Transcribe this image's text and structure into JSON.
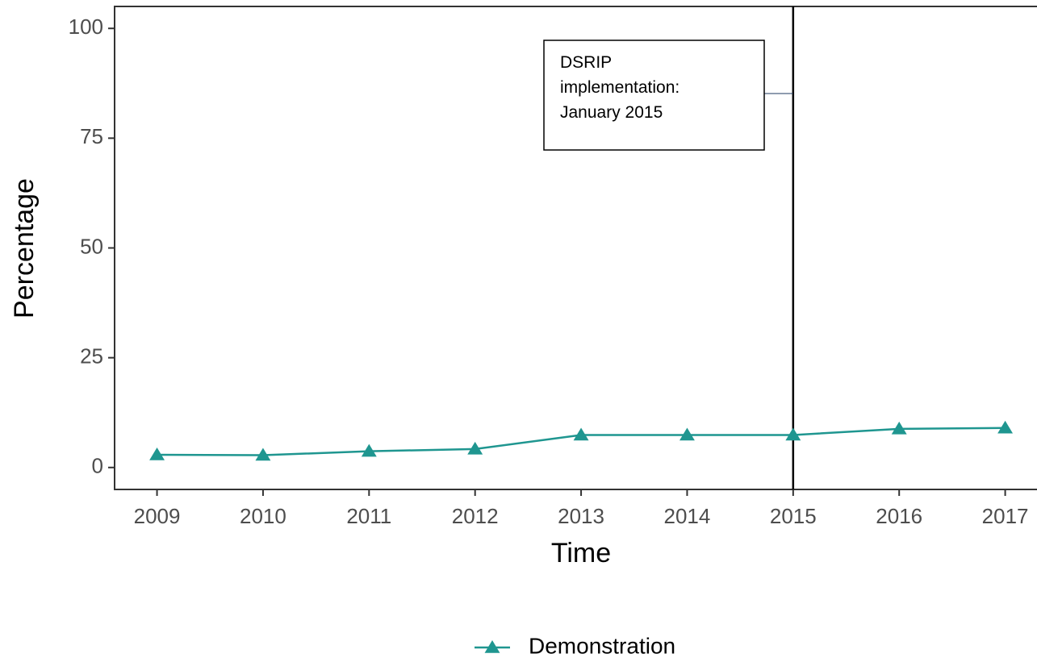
{
  "chart_data": {
    "type": "line",
    "x_label": "Time",
    "y_label": "Percentage",
    "x": [
      2009,
      2010,
      2011,
      2012,
      2013,
      2014,
      2015,
      2016,
      2017
    ],
    "series": [
      {
        "name": "Demonstration",
        "color": "#1f9690",
        "marker": "triangle",
        "values": [
          2.9,
          2.8,
          3.7,
          4.2,
          7.4,
          7.4,
          7.4,
          8.8,
          9.0
        ]
      }
    ],
    "xlim": [
      2008.6,
      2017.3
    ],
    "xticks": [
      2009,
      2010,
      2011,
      2012,
      2013,
      2014,
      2015,
      2016,
      2017
    ],
    "ylim": [
      -5,
      105
    ],
    "yticks": [
      0,
      25,
      50,
      75,
      100
    ],
    "vline": 2015,
    "annotation": [
      "DSRIP",
      "implementation:",
      "January 2015"
    ],
    "legend": "bottom"
  }
}
